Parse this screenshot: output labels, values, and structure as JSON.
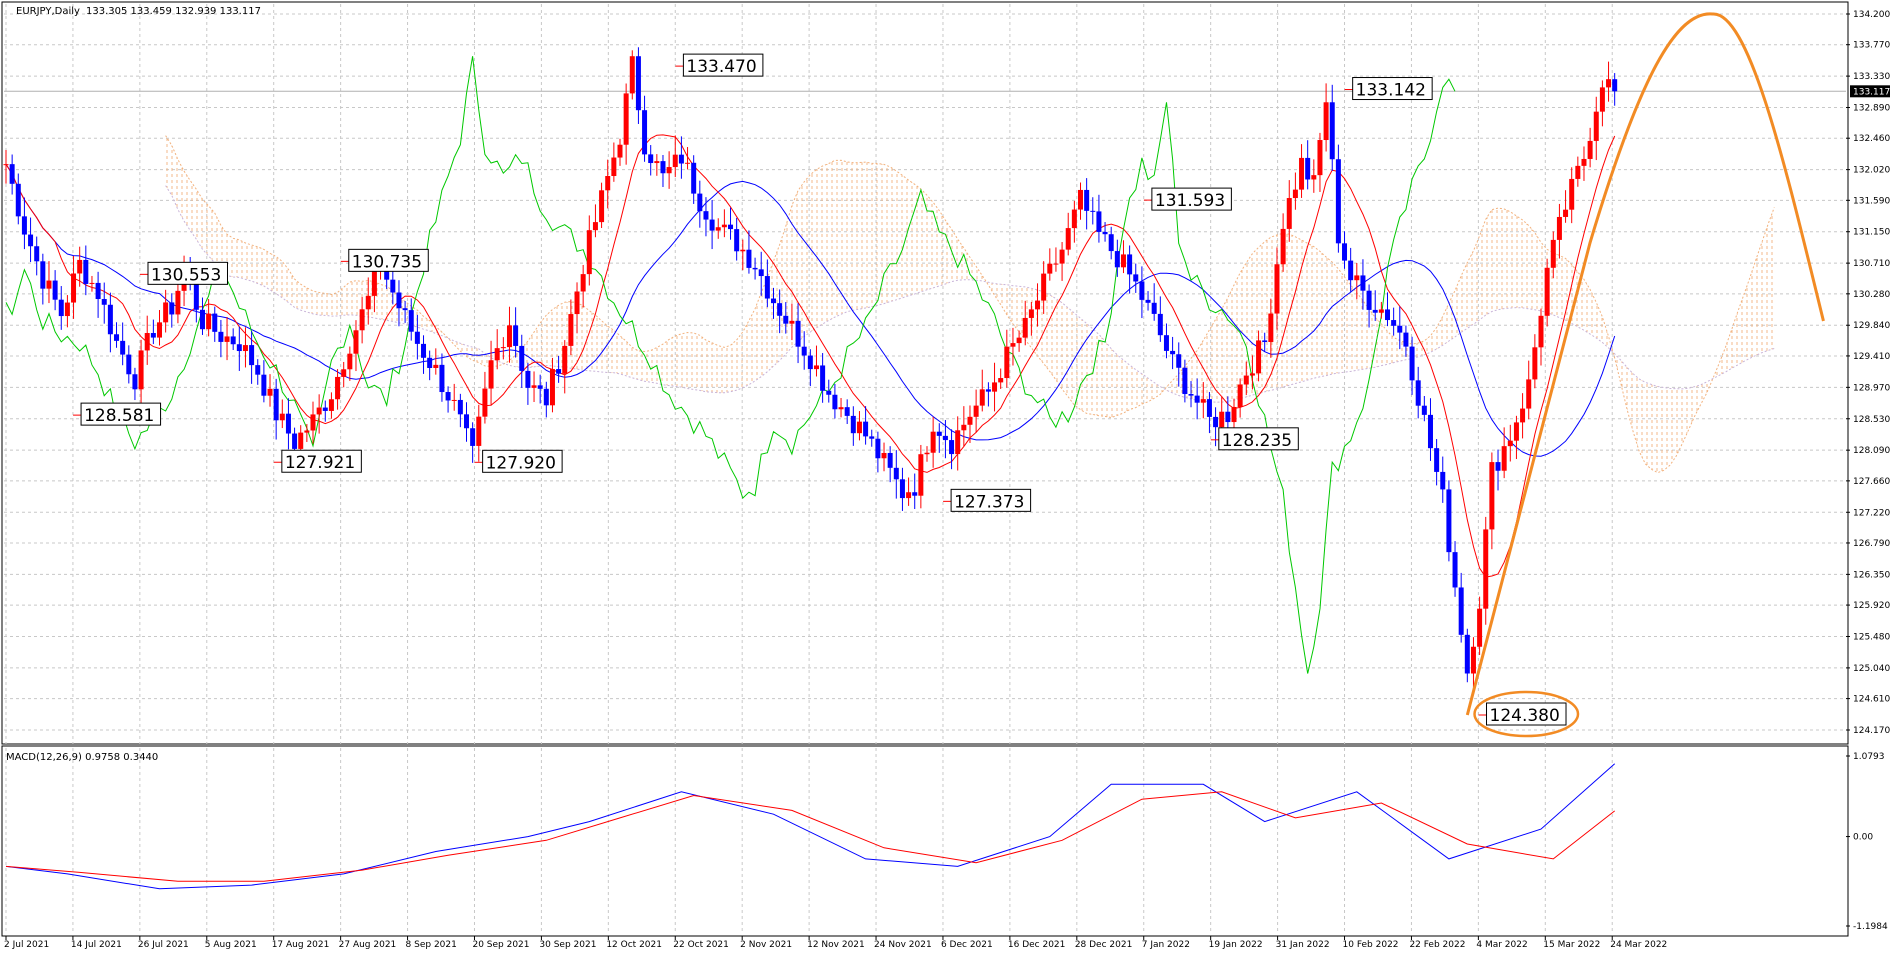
{
  "header": {
    "symbol_label": "EURJPY,Daily",
    "ohlc_label": "133.305 133.459 132.939 133.117"
  },
  "macd_panel": {
    "label": "MACD(12,26,9) 0.9758 0.3440",
    "axis_ticks": [
      "1.0793",
      "0.00",
      "-1.1984"
    ]
  },
  "chart_data": {
    "type": "candlestick",
    "symbol": "EURJPY",
    "timeframe": "Daily",
    "current_price": 133.117,
    "current_price_label": "133.117",
    "price_axis_ticks": [
      "134.200",
      "133.770",
      "133.330",
      "132.890",
      "132.460",
      "132.020",
      "131.590",
      "131.150",
      "130.710",
      "130.280",
      "129.840",
      "129.410",
      "128.970",
      "128.530",
      "128.090",
      "127.660",
      "127.220",
      "126.790",
      "126.350",
      "125.920",
      "125.480",
      "125.040",
      "124.610",
      "124.170"
    ],
    "price_range": [
      124.17,
      134.2
    ],
    "date_axis_ticks": [
      "2 Jul 2021",
      "14 Jul 2021",
      "26 Jul 2021",
      "5 Aug 2021",
      "17 Aug 2021",
      "27 Aug 2021",
      "8 Sep 2021",
      "20 Sep 2021",
      "30 Sep 2021",
      "12 Oct 2021",
      "22 Oct 2021",
      "2 Nov 2021",
      "12 Nov 2021",
      "24 Nov 2021",
      "6 Dec 2021",
      "16 Dec 2021",
      "28 Dec 2021",
      "7 Jan 2022",
      "19 Jan 2022",
      "31 Jan 2022",
      "10 Feb 2022",
      "22 Feb 2022",
      "4 Mar 2022",
      "15 Mar 2022",
      "24 Mar 2022"
    ],
    "close_path": [
      [
        0,
        132.1
      ],
      [
        3,
        131.2
      ],
      [
        6,
        130.5
      ],
      [
        9,
        130.0
      ],
      [
        12,
        130.7
      ],
      [
        15,
        130.3
      ],
      [
        18,
        129.6
      ],
      [
        21,
        129.1
      ],
      [
        24,
        129.8
      ],
      [
        27,
        130.1
      ],
      [
        29,
        130.6
      ],
      [
        32,
        129.9
      ],
      [
        35,
        129.7
      ],
      [
        38,
        129.6
      ],
      [
        41,
        129.2
      ],
      [
        44,
        128.6
      ],
      [
        47,
        128.2
      ],
      [
        50,
        128.5
      ],
      [
        53,
        128.9
      ],
      [
        56,
        129.6
      ],
      [
        59,
        130.2
      ],
      [
        61,
        130.7
      ],
      [
        64,
        130.1
      ],
      [
        67,
        129.6
      ],
      [
        70,
        129.2
      ],
      [
        73,
        128.7
      ],
      [
        76,
        128.0
      ],
      [
        79,
        129.3
      ],
      [
        82,
        129.9
      ],
      [
        85,
        129.0
      ],
      [
        88,
        128.8
      ],
      [
        91,
        129.6
      ],
      [
        94,
        130.7
      ],
      [
        97,
        131.6
      ],
      [
        100,
        132.5
      ],
      [
        102,
        133.47
      ],
      [
        104,
        132.4
      ],
      [
        107,
        131.9
      ],
      [
        110,
        132.2
      ],
      [
        113,
        131.6
      ],
      [
        116,
        131.2
      ],
      [
        119,
        131.0
      ],
      [
        122,
        130.7
      ],
      [
        125,
        130.2
      ],
      [
        128,
        129.8
      ],
      [
        131,
        129.4
      ],
      [
        134,
        128.9
      ],
      [
        137,
        128.6
      ],
      [
        140,
        128.3
      ],
      [
        143,
        127.9
      ],
      [
        146,
        127.5
      ],
      [
        148,
        127.6
      ],
      [
        151,
        128.5
      ],
      [
        154,
        128.2
      ],
      [
        157,
        128.6
      ],
      [
        160,
        128.9
      ],
      [
        163,
        129.4
      ],
      [
        166,
        129.8
      ],
      [
        169,
        130.4
      ],
      [
        172,
        130.9
      ],
      [
        175,
        131.59
      ],
      [
        178,
        131.1
      ],
      [
        181,
        130.8
      ],
      [
        184,
        130.4
      ],
      [
        187,
        129.9
      ],
      [
        190,
        129.3
      ],
      [
        193,
        128.9
      ],
      [
        196,
        128.5
      ],
      [
        199,
        128.6
      ],
      [
        202,
        129.2
      ],
      [
        205,
        129.6
      ],
      [
        208,
        131.3
      ],
      [
        211,
        132.1
      ],
      [
        213,
        131.8
      ],
      [
        215,
        133.0
      ],
      [
        217,
        131.1
      ],
      [
        219,
        130.5
      ],
      [
        222,
        130.2
      ],
      [
        225,
        130.0
      ],
      [
        228,
        129.6
      ],
      [
        231,
        128.5
      ],
      [
        234,
        127.4
      ],
      [
        236,
        126.2
      ],
      [
        238,
        125.0
      ],
      [
        240,
        126.0
      ],
      [
        242,
        127.8
      ],
      [
        245,
        128.3
      ],
      [
        248,
        129.0
      ],
      [
        251,
        130.6
      ],
      [
        254,
        131.5
      ],
      [
        257,
        132.2
      ],
      [
        260,
        133.3
      ],
      [
        262,
        133.117
      ]
    ],
    "marked_levels": [
      {
        "label": "130.553",
        "value": 130.553,
        "date": "26 Jul 2021"
      },
      {
        "label": "128.581",
        "value": 128.581,
        "date": "14 Jul 2021"
      },
      {
        "label": "127.921",
        "value": 127.921,
        "date": "17 Aug 2021"
      },
      {
        "label": "130.735",
        "value": 130.735,
        "date": "27 Aug 2021"
      },
      {
        "label": "127.920",
        "value": 127.92,
        "date": "20 Sep 2021"
      },
      {
        "label": "133.470",
        "value": 133.47,
        "date": "22 Oct 2021"
      },
      {
        "label": "127.373",
        "value": 127.373,
        "date": "6 Dec 2021"
      },
      {
        "label": "131.593",
        "value": 131.593,
        "date": "7 Jan 2022"
      },
      {
        "label": "128.235",
        "value": 128.235,
        "date": "19 Jan 2022"
      },
      {
        "label": "133.142",
        "value": 133.142,
        "date": "10 Feb 2022"
      },
      {
        "label": "124.380",
        "value": 124.38,
        "date": "4 Mar 2022",
        "circled": true
      }
    ],
    "macd": {
      "ylim": [
        -1.1984,
        1.0793
      ],
      "series": [
        {
          "values": [
            [
              0,
              -0.4
            ],
            [
              10,
              -0.5
            ],
            [
              25,
              -0.7
            ],
            [
              40,
              -0.65
            ],
            [
              55,
              -0.5
            ],
            [
              70,
              -0.2
            ],
            [
              85,
              0.0
            ],
            [
              95,
              0.2
            ],
            [
              110,
              0.6
            ],
            [
              125,
              0.3
            ],
            [
              140,
              -0.3
            ],
            [
              155,
              -0.4
            ],
            [
              170,
              0.0
            ],
            [
              180,
              0.7
            ],
            [
              195,
              0.7
            ],
            [
              205,
              0.2
            ],
            [
              220,
              0.6
            ],
            [
              235,
              -0.3
            ],
            [
              250,
              0.1
            ],
            [
              262,
              0.9758
            ]
          ]
        },
        {
          "values": [
            [
              0,
              -0.4
            ],
            [
              12,
              -0.48
            ],
            [
              28,
              -0.6
            ],
            [
              42,
              -0.6
            ],
            [
              58,
              -0.45
            ],
            [
              72,
              -0.25
            ],
            [
              88,
              -0.05
            ],
            [
              100,
              0.25
            ],
            [
              112,
              0.55
            ],
            [
              128,
              0.35
            ],
            [
              143,
              -0.15
            ],
            [
              158,
              -0.35
            ],
            [
              172,
              -0.05
            ],
            [
              185,
              0.5
            ],
            [
              198,
              0.6
            ],
            [
              210,
              0.25
            ],
            [
              224,
              0.45
            ],
            [
              238,
              -0.1
            ],
            [
              252,
              -0.3
            ],
            [
              262,
              0.344
            ]
          ]
        }
      ]
    },
    "colors": {
      "bull": "#ff0000",
      "bear": "#0000ff",
      "macd_main": "#0000ff",
      "macd_signal": "#ff0000",
      "projection": "#f28b24",
      "green_line": "#00c800",
      "kumo": "#f2b27e"
    },
    "grid": true
  }
}
